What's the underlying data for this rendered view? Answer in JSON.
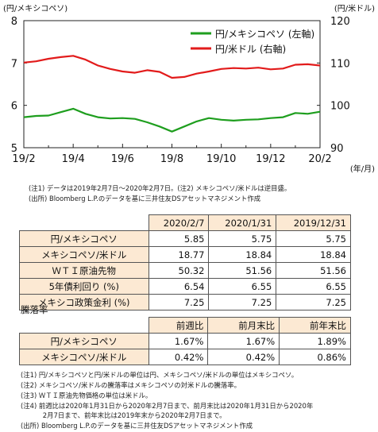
{
  "chart_data": {
    "type": "line",
    "left_axis_unit": "(円/メキシコペソ)",
    "right_axis_unit": "(円/米ドル)",
    "x_unit": "(年/月)",
    "x_ticks": [
      "19/2",
      "19/4",
      "19/6",
      "19/8",
      "19/10",
      "19/12",
      "20/2"
    ],
    "left_ylim": [
      5,
      8
    ],
    "left_ticks": [
      "5",
      "6",
      "7",
      "8"
    ],
    "right_ylim": [
      90,
      120
    ],
    "right_ticks": [
      "90",
      "100",
      "110",
      "120"
    ],
    "grid": false,
    "legend_position": "top-right",
    "series": [
      {
        "name": "円/メキシコペソ (左軸)",
        "axis": "left",
        "color": "#1e9e1e",
        "x": [
          0,
          0.5,
          1,
          1.5,
          2,
          2.5,
          3,
          3.5,
          4,
          4.5,
          5,
          5.5,
          6,
          6.5,
          7,
          7.5,
          8,
          8.5,
          9,
          9.5,
          10,
          10.5,
          11,
          11.5,
          12
        ],
        "values": [
          5.72,
          5.75,
          5.76,
          5.84,
          5.92,
          5.8,
          5.72,
          5.69,
          5.7,
          5.68,
          5.6,
          5.5,
          5.38,
          5.5,
          5.62,
          5.7,
          5.66,
          5.64,
          5.66,
          5.67,
          5.7,
          5.72,
          5.82,
          5.8,
          5.85
        ]
      },
      {
        "name": "円/米ドル (右軸)",
        "axis": "right",
        "color": "#e21b1b",
        "x": [
          0,
          0.5,
          1,
          1.5,
          2,
          2.5,
          3,
          3.5,
          4,
          4.5,
          5,
          5.5,
          6,
          6.5,
          7,
          7.5,
          8,
          8.5,
          9,
          9.5,
          10,
          10.5,
          11,
          11.5,
          12
        ],
        "values": [
          110.1,
          110.4,
          111.0,
          111.4,
          111.7,
          110.8,
          109.4,
          108.6,
          108.0,
          107.7,
          108.3,
          107.9,
          106.5,
          106.7,
          107.5,
          108.0,
          108.6,
          108.8,
          108.7,
          108.9,
          108.5,
          108.7,
          109.6,
          109.7,
          109.4
        ]
      }
    ]
  },
  "chart_notes": [
    "(注1) データは2019年2月7日～2020年2月7日。(注2) メキシコペソ/米ドルは逆目盛。",
    "(出所) Bloomberg L.P.のデータを基に三井住友DSアセットマネジメント作成"
  ],
  "table1": {
    "headers": [
      "2020/2/7",
      "2020/1/31",
      "2019/12/31"
    ],
    "rows": [
      {
        "label": "円/メキシコペソ",
        "values": [
          "5.85",
          "5.75",
          "5.75"
        ]
      },
      {
        "label": "メキシコペソ/米ドル",
        "values": [
          "18.77",
          "18.84",
          "18.84"
        ]
      },
      {
        "label": "ＷＴＩ原油先物",
        "values": [
          "50.32",
          "51.56",
          "51.56"
        ]
      },
      {
        "label": "5年債利回り (%)",
        "values": [
          "6.54",
          "6.55",
          "6.55"
        ]
      },
      {
        "label": "メキシコ政策金利 (%)",
        "values": [
          "7.25",
          "7.25",
          "7.25"
        ]
      }
    ]
  },
  "section_label": "騰落率",
  "table2": {
    "headers": [
      "前週比",
      "前月末比",
      "前年末比"
    ],
    "rows": [
      {
        "label": "円/メキシコペソ",
        "values": [
          "1.67%",
          "1.67%",
          "1.89%"
        ]
      },
      {
        "label": "メキシコペソ/米ドル",
        "values": [
          "0.42%",
          "0.42%",
          "0.86%"
        ]
      }
    ]
  },
  "footnotes": [
    "(注1) 円/メキシコペソと円/米ドルの単位は円、メキシコペソ/米ドルの単位はメキシコペソ。",
    "(注2) メキシコペソ/米ドルの騰落率はメキシコペソの対米ドルの騰落率。",
    "(注3) ＷＴＩ原油先物価格の単位は米ドル。",
    "(注4) 前週比は2020年1月31日から2020年2月7日まで、前月末比は2020年1月31日から2020年",
    "　　　 2月7日まで、前年末比は2019年末から2020年2月7日まで。",
    "(出所) Bloomberg L.P.のデータを基に三井住友DSアセットマネジメント作成"
  ]
}
